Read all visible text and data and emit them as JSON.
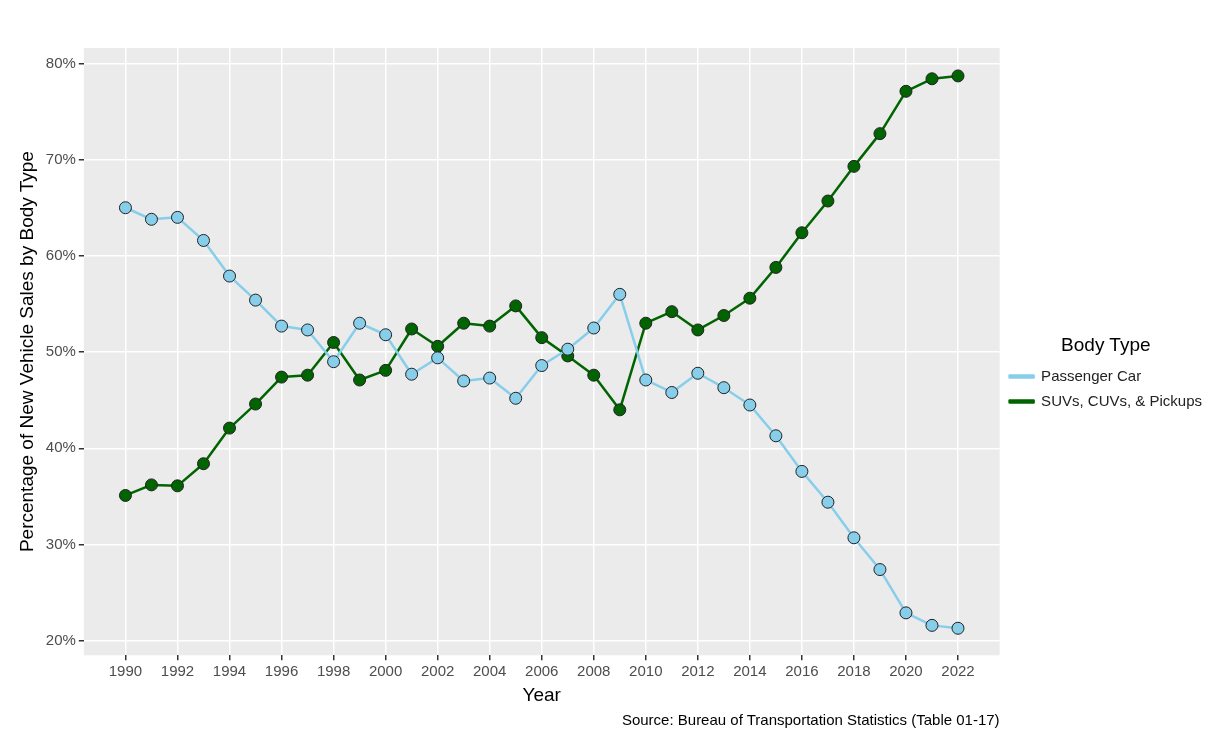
{
  "chart_data": {
    "type": "line",
    "xlabel": "Year",
    "ylabel": "Percentage of New Vehicle Sales by Body Type",
    "legend_title": "Body Type",
    "legend": "right",
    "grid": true,
    "marker": "circle",
    "line_style": "solid",
    "x": [
      1990,
      1991,
      1992,
      1993,
      1994,
      1995,
      1996,
      1997,
      1998,
      1999,
      2000,
      2001,
      2002,
      2003,
      2004,
      2005,
      2006,
      2007,
      2008,
      2009,
      2010,
      2011,
      2012,
      2013,
      2014,
      2015,
      2016,
      2017,
      2018,
      2019,
      2020,
      2021,
      2022
    ],
    "xlim": [
      1988.4,
      2023.6
    ],
    "xticks": [
      1990,
      1992,
      1994,
      1996,
      1998,
      2000,
      2002,
      2004,
      2006,
      2008,
      2010,
      2012,
      2014,
      2016,
      2018,
      2020,
      2022
    ],
    "ylim": [
      18.5,
      81.6
    ],
    "yticks": [
      {
        "value": 20,
        "label": "20%"
      },
      {
        "value": 30,
        "label": "30%"
      },
      {
        "value": 40,
        "label": "40%"
      },
      {
        "value": 50,
        "label": "50%"
      },
      {
        "value": 60,
        "label": "60%"
      },
      {
        "value": 70,
        "label": "70%"
      },
      {
        "value": 80,
        "label": "80%"
      }
    ],
    "series": [
      {
        "name": "Passenger Car",
        "color": "#87ceeb",
        "values": [
          65.0,
          63.8,
          64.0,
          61.6,
          57.9,
          55.4,
          52.7,
          52.3,
          49.0,
          53.0,
          51.8,
          47.7,
          49.4,
          47.0,
          47.3,
          45.2,
          48.6,
          50.3,
          52.5,
          56.0,
          47.1,
          45.8,
          47.8,
          46.3,
          44.5,
          41.3,
          37.6,
          34.4,
          30.7,
          27.4,
          22.9,
          21.6,
          21.3
        ]
      },
      {
        "name": "SUVs, CUVs, & Pickups",
        "color": "#006400",
        "values": [
          35.1,
          36.2,
          36.1,
          38.4,
          42.1,
          44.6,
          47.4,
          47.6,
          51.0,
          47.1,
          48.1,
          52.4,
          50.6,
          53.0,
          52.7,
          54.8,
          51.5,
          49.6,
          47.6,
          44.0,
          53.0,
          54.2,
          52.3,
          53.8,
          55.6,
          58.8,
          62.4,
          65.7,
          69.3,
          72.7,
          77.1,
          78.4,
          78.7
        ]
      }
    ],
    "annotations": [
      "Source: Bureau of Transportation Statistics (Table 01-17)"
    ]
  }
}
